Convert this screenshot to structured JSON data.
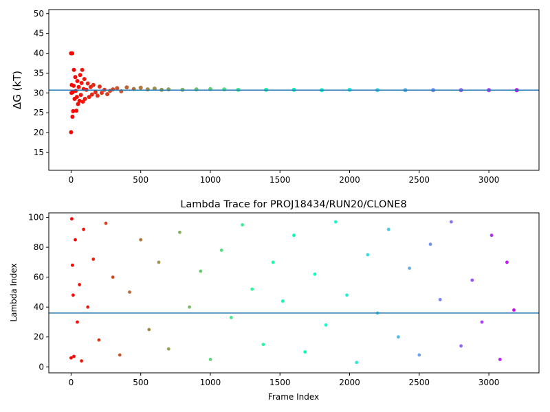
{
  "chart_data": [
    {
      "type": "scatter",
      "title": "",
      "xlabel": "",
      "ylabel": "ΔG (kT)",
      "xlim": [
        -160,
        3360
      ],
      "ylim": [
        10.5,
        51
      ],
      "xticks": [
        0,
        500,
        1000,
        1500,
        2000,
        2500,
        3000
      ],
      "yticks": [
        15,
        20,
        25,
        30,
        35,
        40,
        45,
        50
      ],
      "hline": 30.7,
      "hline_color": "#1f77b4",
      "colormap": "rainbow",
      "grid": false,
      "n_frames": 3200,
      "series": [
        {
          "values": [
            {
              "x": 0,
              "y": 20.1
            },
            {
              "x": 0,
              "y": 40.0
            },
            {
              "x": 3,
              "y": 30.0
            },
            {
              "x": 5,
              "y": 32.0
            },
            {
              "x": 8,
              "y": 40.0
            },
            {
              "x": 10,
              "y": 24.0
            },
            {
              "x": 12,
              "y": 30.2
            },
            {
              "x": 15,
              "y": 25.4
            },
            {
              "x": 18,
              "y": 31.8
            },
            {
              "x": 20,
              "y": 35.8
            },
            {
              "x": 25,
              "y": 28.5
            },
            {
              "x": 30,
              "y": 34.0
            },
            {
              "x": 33,
              "y": 30.5
            },
            {
              "x": 38,
              "y": 25.5
            },
            {
              "x": 42,
              "y": 29.0
            },
            {
              "x": 45,
              "y": 33.0
            },
            {
              "x": 50,
              "y": 27.2
            },
            {
              "x": 55,
              "y": 31.5
            },
            {
              "x": 60,
              "y": 28.0
            },
            {
              "x": 65,
              "y": 34.5
            },
            {
              "x": 70,
              "y": 29.5
            },
            {
              "x": 75,
              "y": 32.5
            },
            {
              "x": 80,
              "y": 35.8
            },
            {
              "x": 85,
              "y": 27.8
            },
            {
              "x": 90,
              "y": 31.0
            },
            {
              "x": 95,
              "y": 33.5
            },
            {
              "x": 100,
              "y": 28.5
            },
            {
              "x": 110,
              "y": 30.8
            },
            {
              "x": 120,
              "y": 32.4
            },
            {
              "x": 130,
              "y": 29.0
            },
            {
              "x": 140,
              "y": 31.5
            },
            {
              "x": 150,
              "y": 29.6
            },
            {
              "x": 160,
              "y": 32.0
            },
            {
              "x": 175,
              "y": 30.2
            },
            {
              "x": 190,
              "y": 29.3
            },
            {
              "x": 205,
              "y": 31.6
            },
            {
              "x": 220,
              "y": 30.0
            },
            {
              "x": 240,
              "y": 30.8
            },
            {
              "x": 260,
              "y": 29.7
            },
            {
              "x": 280,
              "y": 30.5
            },
            {
              "x": 300,
              "y": 30.9
            },
            {
              "x": 330,
              "y": 31.2
            },
            {
              "x": 360,
              "y": 30.4
            },
            {
              "x": 400,
              "y": 31.4
            },
            {
              "x": 450,
              "y": 31.0
            },
            {
              "x": 500,
              "y": 31.3
            },
            {
              "x": 550,
              "y": 30.9
            },
            {
              "x": 600,
              "y": 31.1
            },
            {
              "x": 650,
              "y": 30.8
            },
            {
              "x": 700,
              "y": 30.9
            },
            {
              "x": 800,
              "y": 30.8
            },
            {
              "x": 900,
              "y": 30.9
            },
            {
              "x": 1000,
              "y": 31.0
            },
            {
              "x": 1100,
              "y": 30.9
            },
            {
              "x": 1200,
              "y": 30.8
            },
            {
              "x": 1400,
              "y": 30.8
            },
            {
              "x": 1600,
              "y": 30.8
            },
            {
              "x": 1800,
              "y": 30.7
            },
            {
              "x": 2000,
              "y": 30.8
            },
            {
              "x": 2200,
              "y": 30.7
            },
            {
              "x": 2400,
              "y": 30.7
            },
            {
              "x": 2600,
              "y": 30.7
            },
            {
              "x": 2800,
              "y": 30.7
            },
            {
              "x": 3000,
              "y": 30.7
            },
            {
              "x": 3200,
              "y": 30.7
            }
          ]
        }
      ]
    },
    {
      "type": "scatter",
      "title": "Lambda Trace for PROJ18434/RUN20/CLONE8",
      "xlabel": "Frame Index",
      "ylabel": "Lambda Index",
      "xlim": [
        -160,
        3360
      ],
      "ylim": [
        -4,
        103
      ],
      "xticks": [
        0,
        500,
        1000,
        1500,
        2000,
        2500,
        3000
      ],
      "yticks": [
        0,
        20,
        40,
        60,
        80,
        100
      ],
      "hline": 36,
      "hline_color": "#1f77b4",
      "colormap": "rainbow",
      "grid": false,
      "n_frames": 3200,
      "series": [
        {
          "values": [
            {
              "x": 0,
              "y": 6
            },
            {
              "x": 5,
              "y": 99
            },
            {
              "x": 10,
              "y": 68
            },
            {
              "x": 15,
              "y": 48
            },
            {
              "x": 20,
              "y": 7
            },
            {
              "x": 30,
              "y": 85
            },
            {
              "x": 45,
              "y": 30
            },
            {
              "x": 60,
              "y": 55
            },
            {
              "x": 75,
              "y": 4
            },
            {
              "x": 90,
              "y": 92
            },
            {
              "x": 120,
              "y": 40
            },
            {
              "x": 160,
              "y": 72
            },
            {
              "x": 200,
              "y": 18
            },
            {
              "x": 250,
              "y": 96
            },
            {
              "x": 300,
              "y": 60
            },
            {
              "x": 350,
              "y": 8
            },
            {
              "x": 420,
              "y": 50
            },
            {
              "x": 500,
              "y": 85
            },
            {
              "x": 560,
              "y": 25
            },
            {
              "x": 630,
              "y": 70
            },
            {
              "x": 700,
              "y": 12
            },
            {
              "x": 780,
              "y": 90
            },
            {
              "x": 850,
              "y": 40
            },
            {
              "x": 930,
              "y": 64
            },
            {
              "x": 1000,
              "y": 5
            },
            {
              "x": 1080,
              "y": 78
            },
            {
              "x": 1150,
              "y": 33
            },
            {
              "x": 1230,
              "y": 95
            },
            {
              "x": 1300,
              "y": 52
            },
            {
              "x": 1380,
              "y": 15
            },
            {
              "x": 1450,
              "y": 70
            },
            {
              "x": 1520,
              "y": 44
            },
            {
              "x": 1600,
              "y": 88
            },
            {
              "x": 1680,
              "y": 10
            },
            {
              "x": 1750,
              "y": 62
            },
            {
              "x": 1830,
              "y": 28
            },
            {
              "x": 1900,
              "y": 97
            },
            {
              "x": 1980,
              "y": 48
            },
            {
              "x": 2050,
              "y": 3
            },
            {
              "x": 2130,
              "y": 75
            },
            {
              "x": 2200,
              "y": 36
            },
            {
              "x": 2280,
              "y": 92
            },
            {
              "x": 2350,
              "y": 20
            },
            {
              "x": 2430,
              "y": 66
            },
            {
              "x": 2500,
              "y": 8
            },
            {
              "x": 2580,
              "y": 82
            },
            {
              "x": 2650,
              "y": 45
            },
            {
              "x": 2730,
              "y": 97
            },
            {
              "x": 2800,
              "y": 14
            },
            {
              "x": 2880,
              "y": 58
            },
            {
              "x": 2950,
              "y": 30
            },
            {
              "x": 3020,
              "y": 88
            },
            {
              "x": 3080,
              "y": 5
            },
            {
              "x": 3130,
              "y": 70
            },
            {
              "x": 3180,
              "y": 38
            }
          ]
        }
      ]
    }
  ]
}
